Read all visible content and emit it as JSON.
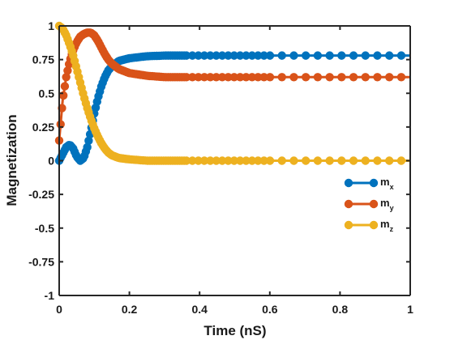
{
  "chart_data": {
    "type": "line",
    "title": "",
    "xlabel": "Time (nS)",
    "ylabel": "Magnetization",
    "xlim": [
      0,
      1
    ],
    "ylim": [
      -1,
      1
    ],
    "xticks": [
      0,
      0.2,
      0.4,
      0.6,
      0.8,
      1
    ],
    "xtick_labels": [
      "0",
      "0.2",
      "0.4",
      "0.6",
      "0.8",
      "1"
    ],
    "yticks": [
      -1,
      -0.75,
      -0.5,
      -0.25,
      0,
      0.25,
      0.5,
      0.75,
      1
    ],
    "ytick_labels": [
      "-1",
      "-0.75",
      "-0.5",
      "-0.25",
      "0",
      "0.25",
      "0.5",
      "0.75",
      "1"
    ],
    "grid": false,
    "legend_position": "right",
    "series": [
      {
        "name": "m",
        "subscript": "x",
        "color": "#0072BD",
        "points": [
          [
            0,
            0
          ],
          [
            0.01,
            0.05
          ],
          [
            0.02,
            0.1
          ],
          [
            0.03,
            0.12
          ],
          [
            0.04,
            0.09
          ],
          [
            0.05,
            0.03
          ],
          [
            0.06,
            0.0
          ],
          [
            0.07,
            0.02
          ],
          [
            0.08,
            0.1
          ],
          [
            0.09,
            0.22
          ],
          [
            0.1,
            0.35
          ],
          [
            0.11,
            0.46
          ],
          [
            0.12,
            0.55
          ],
          [
            0.13,
            0.62
          ],
          [
            0.14,
            0.67
          ],
          [
            0.15,
            0.7
          ],
          [
            0.17,
            0.74
          ],
          [
            0.2,
            0.76
          ],
          [
            0.25,
            0.775
          ],
          [
            0.3,
            0.78
          ],
          [
            0.4,
            0.78
          ],
          [
            0.6,
            0.78
          ],
          [
            0.8,
            0.78
          ],
          [
            1.0,
            0.78
          ]
        ]
      },
      {
        "name": "m",
        "subscript": "y",
        "color": "#D95319",
        "points": [
          [
            0,
            0.15
          ],
          [
            0.01,
            0.45
          ],
          [
            0.02,
            0.62
          ],
          [
            0.03,
            0.74
          ],
          [
            0.04,
            0.82
          ],
          [
            0.05,
            0.88
          ],
          [
            0.06,
            0.92
          ],
          [
            0.07,
            0.94
          ],
          [
            0.08,
            0.95
          ],
          [
            0.09,
            0.95
          ],
          [
            0.1,
            0.93
          ],
          [
            0.11,
            0.89
          ],
          [
            0.12,
            0.84
          ],
          [
            0.13,
            0.79
          ],
          [
            0.14,
            0.75
          ],
          [
            0.15,
            0.72
          ],
          [
            0.17,
            0.68
          ],
          [
            0.2,
            0.65
          ],
          [
            0.25,
            0.63
          ],
          [
            0.3,
            0.62
          ],
          [
            0.4,
            0.62
          ],
          [
            0.6,
            0.62
          ],
          [
            0.8,
            0.62
          ],
          [
            1.0,
            0.62
          ]
        ]
      },
      {
        "name": "m",
        "subscript": "z",
        "color": "#EDB120",
        "points": [
          [
            0,
            1.0
          ],
          [
            0.01,
            0.98
          ],
          [
            0.02,
            0.93
          ],
          [
            0.03,
            0.86
          ],
          [
            0.04,
            0.78
          ],
          [
            0.05,
            0.68
          ],
          [
            0.06,
            0.58
          ],
          [
            0.07,
            0.48
          ],
          [
            0.08,
            0.39
          ],
          [
            0.09,
            0.31
          ],
          [
            0.1,
            0.24
          ],
          [
            0.11,
            0.18
          ],
          [
            0.12,
            0.13
          ],
          [
            0.13,
            0.09
          ],
          [
            0.14,
            0.06
          ],
          [
            0.15,
            0.04
          ],
          [
            0.17,
            0.02
          ],
          [
            0.2,
            0.01
          ],
          [
            0.25,
            0.0
          ],
          [
            0.3,
            0.0
          ],
          [
            0.4,
            0.0
          ],
          [
            0.6,
            0.0
          ],
          [
            0.8,
            0.0
          ],
          [
            1.0,
            0.0
          ]
        ]
      }
    ]
  }
}
